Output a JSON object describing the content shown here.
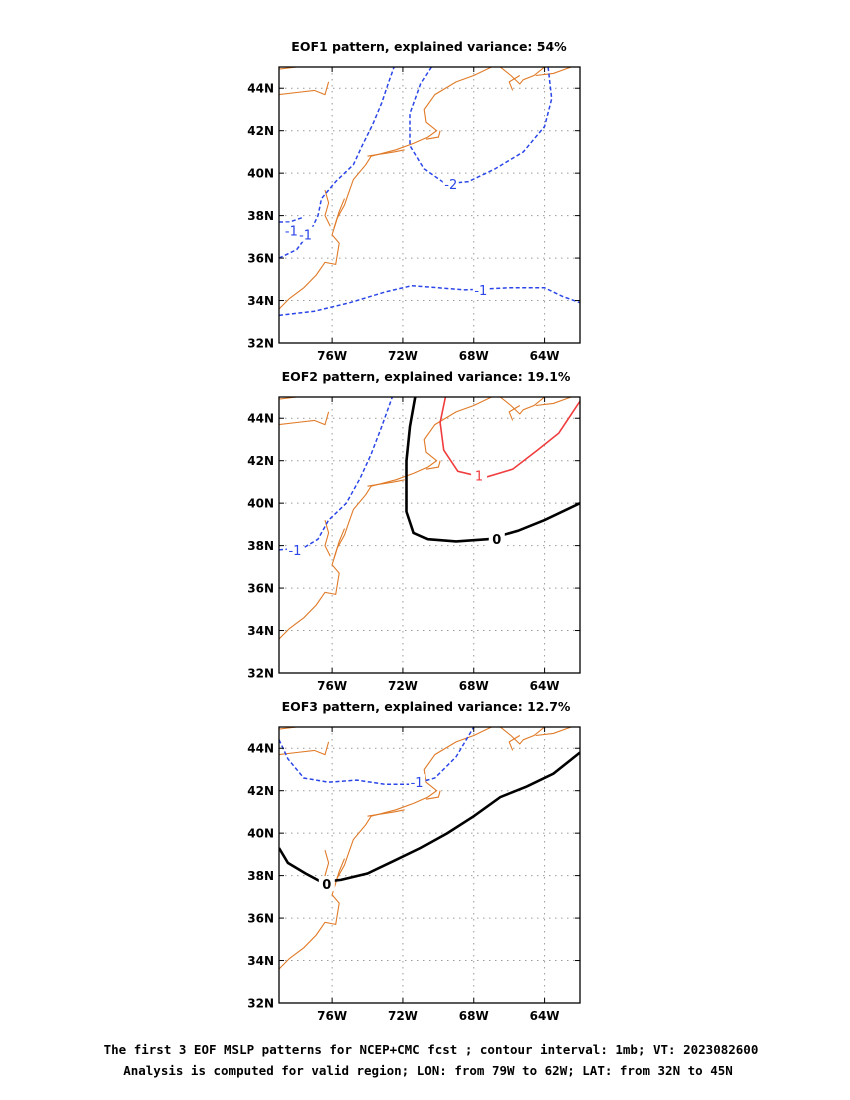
{
  "caption": {
    "line1": "The first 3 EOF MSLP patterns for NCEP+CMC fcst ; contour interval: 1mb; VT: 2023082600",
    "line2": "Analysis is computed for valid region; LON: from 79W to 62W; LAT: from 32N to 45N"
  },
  "colors": {
    "coast": "#e07a27",
    "negative": "#2a46e8",
    "zero": "#000000",
    "positive": "#f03c3c",
    "grid": "#9a9a9a"
  },
  "chart_data": [
    {
      "type": "contour",
      "title": "EOF1 pattern, explained variance: 54%",
      "xlim": [
        -79,
        -62
      ],
      "ylim": [
        32,
        45
      ],
      "xticks": [
        {
          "value": -76,
          "label": "76W"
        },
        {
          "value": -72,
          "label": "72W"
        },
        {
          "value": -68,
          "label": "68W"
        },
        {
          "value": -64,
          "label": "64W"
        }
      ],
      "yticks": [
        {
          "value": 32,
          "label": "32N"
        },
        {
          "value": 34,
          "label": "34N"
        },
        {
          "value": 36,
          "label": "36N"
        },
        {
          "value": 38,
          "label": "38N"
        },
        {
          "value": 40,
          "label": "40N"
        },
        {
          "value": 42,
          "label": "42N"
        },
        {
          "value": 44,
          "label": "44N"
        }
      ],
      "grid": true,
      "contours": [
        {
          "level": -1,
          "label": "-1",
          "style": "negative",
          "points": [
            [
              -79,
              36
            ],
            [
              -78,
              36.4
            ],
            [
              -77.2,
              37.3
            ],
            [
              -76.8,
              38
            ],
            [
              -76.6,
              38.8
            ],
            [
              -75.8,
              39.6
            ],
            [
              -74.8,
              40.4
            ],
            [
              -74.3,
              41.3
            ],
            [
              -73.7,
              42.3
            ],
            [
              -73.2,
              43.3
            ],
            [
              -72.8,
              44.3
            ],
            [
              -72.5,
              45
            ]
          ],
          "labelAt": [
            -77.5,
            37.1
          ]
        },
        {
          "level": -1,
          "label": "-1",
          "style": "negative",
          "points": [
            [
              -79,
              33.3
            ],
            [
              -77,
              33.5
            ],
            [
              -75,
              33.9
            ],
            [
              -73,
              34.4
            ],
            [
              -71.5,
              34.7
            ],
            [
              -70,
              34.6
            ],
            [
              -68.5,
              34.5
            ],
            [
              -66,
              34.6
            ],
            [
              -64,
              34.6
            ],
            [
              -63,
              34.2
            ],
            [
              -62,
              33.9
            ]
          ],
          "labelAt": [
            -67.6,
            34.5
          ]
        },
        {
          "level": -1,
          "label": "-1",
          "style": "negative",
          "points": [
            [
              -79,
              37.7
            ],
            [
              -78.4,
              37.7
            ],
            [
              -77.7,
              37.9
            ]
          ],
          "labelAt": [
            -78.3,
            37.3
          ]
        },
        {
          "level": -2,
          "label": "-2",
          "style": "negative",
          "points": [
            [
              -70.4,
              45
            ],
            [
              -71,
              44.2
            ],
            [
              -71.6,
              42.8
            ],
            [
              -71.6,
              41.3
            ],
            [
              -70.8,
              40.2
            ],
            [
              -69.6,
              39.5
            ],
            [
              -68.3,
              39.6
            ],
            [
              -66.8,
              40.2
            ],
            [
              -65.2,
              41
            ],
            [
              -64,
              42.2
            ],
            [
              -63.6,
              43.5
            ],
            [
              -63.8,
              45
            ]
          ],
          "labelAt": [
            -69.3,
            39.5
          ]
        }
      ]
    },
    {
      "type": "contour",
      "title": "EOF2 pattern, explained variance: 19.1%",
      "xlim": [
        -79,
        -62
      ],
      "ylim": [
        32,
        45
      ],
      "xticks": [
        {
          "value": -76,
          "label": "76W"
        },
        {
          "value": -72,
          "label": "72W"
        },
        {
          "value": -68,
          "label": "68W"
        },
        {
          "value": -64,
          "label": "64W"
        }
      ],
      "yticks": [
        {
          "value": 32,
          "label": "32N"
        },
        {
          "value": 34,
          "label": "34N"
        },
        {
          "value": 36,
          "label": "36N"
        },
        {
          "value": 38,
          "label": "38N"
        },
        {
          "value": 40,
          "label": "40N"
        },
        {
          "value": 42,
          "label": "42N"
        },
        {
          "value": 44,
          "label": "44N"
        }
      ],
      "grid": true,
      "contours": [
        {
          "level": -1,
          "label": "-1",
          "style": "negative",
          "points": [
            [
              -79,
              37.8
            ],
            [
              -77.6,
              37.9
            ],
            [
              -76.8,
              38.3
            ],
            [
              -76.2,
              39.2
            ],
            [
              -75.2,
              40
            ],
            [
              -74.4,
              41.2
            ],
            [
              -73.8,
              42.3
            ],
            [
              -73.2,
              43.6
            ],
            [
              -72.6,
              45
            ]
          ],
          "labelAt": [
            -78.1,
            37.8
          ]
        },
        {
          "level": 0,
          "label": "0",
          "style": "zero",
          "points": [
            [
              -71.3,
              45
            ],
            [
              -71.6,
              43.6
            ],
            [
              -71.8,
              42
            ],
            [
              -71.8,
              39.6
            ],
            [
              -71.4,
              38.6
            ],
            [
              -70.6,
              38.3
            ],
            [
              -69,
              38.2
            ],
            [
              -67.2,
              38.3
            ],
            [
              -65.5,
              38.7
            ],
            [
              -64,
              39.2
            ],
            [
              -62,
              40
            ]
          ],
          "labelAt": [
            -66.7,
            38.3
          ]
        },
        {
          "level": 1,
          "label": "1",
          "style": "positive",
          "points": [
            [
              -69.6,
              45
            ],
            [
              -69.9,
              43.8
            ],
            [
              -69.7,
              42.5
            ],
            [
              -68.9,
              41.5
            ],
            [
              -67.4,
              41.2
            ],
            [
              -65.8,
              41.6
            ],
            [
              -64.4,
              42.5
            ],
            [
              -63.2,
              43.3
            ],
            [
              -62,
              44.8
            ]
          ],
          "labelAt": [
            -67.7,
            41.3
          ]
        }
      ]
    },
    {
      "type": "contour",
      "title": "EOF3 pattern, explained variance: 12.7%",
      "xlim": [
        -79,
        -62
      ],
      "ylim": [
        32,
        45
      ],
      "xticks": [
        {
          "value": -76,
          "label": "76W"
        },
        {
          "value": -72,
          "label": "72W"
        },
        {
          "value": -68,
          "label": "68W"
        },
        {
          "value": -64,
          "label": "64W"
        }
      ],
      "yticks": [
        {
          "value": 32,
          "label": "32N"
        },
        {
          "value": 34,
          "label": "34N"
        },
        {
          "value": 36,
          "label": "36N"
        },
        {
          "value": 38,
          "label": "38N"
        },
        {
          "value": 40,
          "label": "40N"
        },
        {
          "value": 42,
          "label": "42N"
        },
        {
          "value": 44,
          "label": "44N"
        }
      ],
      "grid": true,
      "contours": [
        {
          "level": -1,
          "label": "-1",
          "style": "negative",
          "points": [
            [
              -79,
              44.4
            ],
            [
              -78.5,
              43.5
            ],
            [
              -77.6,
              42.6
            ],
            [
              -76.2,
              42.4
            ],
            [
              -74.6,
              42.5
            ],
            [
              -73,
              42.3
            ],
            [
              -71.5,
              42.3
            ],
            [
              -70.2,
              42.6
            ],
            [
              -69,
              43.6
            ],
            [
              -68,
              45
            ]
          ],
          "labelAt": [
            -71.2,
            42.4
          ]
        },
        {
          "level": 0,
          "label": "0",
          "style": "zero",
          "points": [
            [
              -79,
              39.3
            ],
            [
              -78.5,
              38.6
            ],
            [
              -77.5,
              38.1
            ],
            [
              -76.6,
              37.7
            ],
            [
              -75.5,
              37.8
            ],
            [
              -74,
              38.1
            ],
            [
              -72.5,
              38.7
            ],
            [
              -71,
              39.3
            ],
            [
              -69.5,
              40
            ],
            [
              -68,
              40.8
            ],
            [
              -66.5,
              41.7
            ],
            [
              -65,
              42.2
            ],
            [
              -63.5,
              42.8
            ],
            [
              -62,
              43.8
            ]
          ],
          "labelAt": [
            -76.3,
            37.6
          ]
        }
      ]
    }
  ]
}
